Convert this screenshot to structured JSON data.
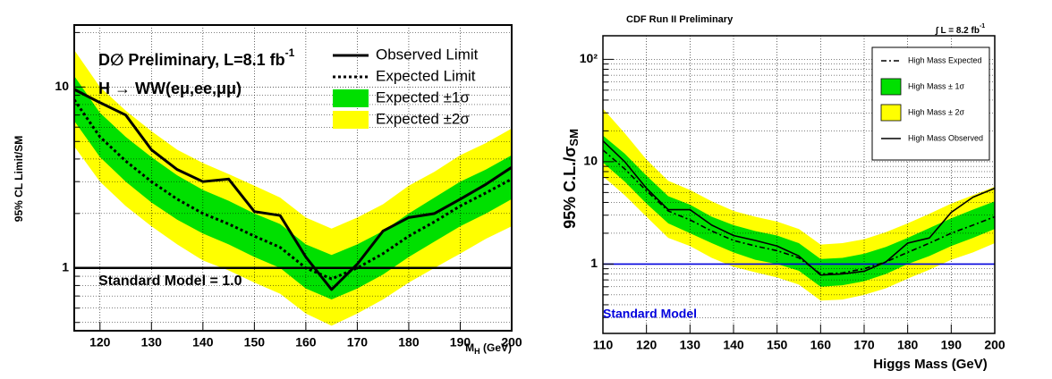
{
  "chart_data": [
    {
      "type": "line",
      "log_y": true,
      "grid": true,
      "title": "D∅ Preliminary, L=8.1 fb",
      "title_sup": "-1",
      "subtitle": "H → WW(eμ,ee,μμ)",
      "y_label": "95% CL Limit/SM",
      "x_label": "M",
      "x_label_sub": "H",
      "x_label_unit": " (GeV)",
      "x": [
        115,
        120,
        125,
        130,
        135,
        140,
        145,
        150,
        155,
        160,
        165,
        170,
        175,
        180,
        185,
        190,
        195,
        200
      ],
      "series": [
        {
          "name": "Observed Limit",
          "color": "#000000",
          "style": "solid",
          "values": [
            9.7,
            8.2,
            7.0,
            4.5,
            3.5,
            3.0,
            3.1,
            2.05,
            1.95,
            1.15,
            0.76,
            1.05,
            1.6,
            1.9,
            2.0,
            2.4,
            2.9,
            3.6
          ]
        },
        {
          "name": "Expected Limit",
          "color": "#000000",
          "style": "dotted",
          "values": [
            8.5,
            5.3,
            3.9,
            3.0,
            2.4,
            2.0,
            1.75,
            1.5,
            1.3,
            1.0,
            0.87,
            1.0,
            1.2,
            1.5,
            1.8,
            2.2,
            2.6,
            3.1
          ]
        },
        {
          "name": "Expected ±1σ",
          "color": "#00e000",
          "style": "band",
          "low": [
            6.5,
            4.1,
            3.0,
            2.3,
            1.85,
            1.55,
            1.35,
            1.15,
            1.0,
            0.77,
            0.67,
            0.77,
            0.92,
            1.15,
            1.4,
            1.7,
            2.0,
            2.4
          ],
          "high": [
            11.5,
            7.2,
            5.3,
            4.1,
            3.25,
            2.7,
            2.35,
            2.0,
            1.75,
            1.35,
            1.18,
            1.35,
            1.6,
            2.0,
            2.45,
            3.0,
            3.5,
            4.2
          ]
        },
        {
          "name": "Expected ±2σ",
          "color": "#ffff00",
          "style": "band",
          "low": [
            4.7,
            3.0,
            2.2,
            1.7,
            1.35,
            1.1,
            0.97,
            0.83,
            0.72,
            0.56,
            0.48,
            0.56,
            0.67,
            0.83,
            1.0,
            1.2,
            1.45,
            1.7
          ],
          "high": [
            16,
            10,
            7.4,
            5.7,
            4.5,
            3.8,
            3.3,
            2.85,
            2.45,
            1.9,
            1.65,
            1.9,
            2.25,
            2.85,
            3.4,
            4.2,
            4.9,
            5.9
          ]
        }
      ],
      "reference_line": {
        "value": 1.0,
        "label": "Standard Model = 1.0",
        "color": "#000000"
      },
      "xlim": [
        115,
        200
      ],
      "ylim": [
        0.45,
        22
      ],
      "xticks": [
        120,
        130,
        140,
        150,
        160,
        170,
        180,
        190,
        200
      ],
      "yticks": [
        1,
        10
      ],
      "yminorticks": [
        0.5,
        0.6,
        0.7,
        0.8,
        0.9,
        2,
        3,
        4,
        5,
        6,
        7,
        8,
        9,
        20
      ]
    },
    {
      "type": "line",
      "log_y": true,
      "grid": true,
      "title": "CDF Run II Preliminary",
      "luminosity": "∫ L = 8.2 fb",
      "luminosity_sup": "-1",
      "y_label": "95% C.L./σ",
      "y_label_sub": "SM",
      "x_label": "Higgs Mass (GeV)",
      "x": [
        110,
        115,
        120,
        125,
        130,
        135,
        140,
        145,
        150,
        155,
        160,
        165,
        170,
        175,
        180,
        185,
        190,
        195,
        200
      ],
      "series": [
        {
          "name": "High Mass Expected",
          "color": "#000000",
          "style": "dashdot",
          "values": [
            13,
            8.5,
            5.2,
            3.3,
            2.7,
            2.1,
            1.7,
            1.5,
            1.35,
            1.15,
            0.8,
            0.82,
            0.9,
            1.05,
            1.3,
            1.6,
            2.0,
            2.4,
            2.9
          ]
        },
        {
          "name": "High Mass ± 1σ",
          "color": "#00e000",
          "style": "band",
          "low": [
            9.8,
            6.4,
            3.9,
            2.5,
            2.0,
            1.6,
            1.3,
            1.1,
            1.0,
            0.86,
            0.6,
            0.62,
            0.68,
            0.8,
            1.0,
            1.2,
            1.5,
            1.8,
            2.2
          ],
          "high": [
            18,
            12,
            7.3,
            4.6,
            3.8,
            2.9,
            2.4,
            2.1,
            1.9,
            1.6,
            1.12,
            1.15,
            1.26,
            1.47,
            1.8,
            2.25,
            2.8,
            3.4,
            4.1
          ]
        },
        {
          "name": "High Mass ± 2σ",
          "color": "#ffff00",
          "style": "band",
          "low": [
            7.2,
            4.7,
            2.9,
            1.8,
            1.5,
            1.15,
            0.94,
            0.83,
            0.74,
            0.63,
            0.44,
            0.45,
            0.5,
            0.58,
            0.72,
            0.88,
            1.1,
            1.3,
            1.6
          ],
          "high": [
            33,
            19,
            10.5,
            6.5,
            5.3,
            4.1,
            3.3,
            2.9,
            2.6,
            2.2,
            1.55,
            1.6,
            1.75,
            2.05,
            2.5,
            3.1,
            3.9,
            4.7,
            5.7
          ]
        },
        {
          "name": "High Mass Observed",
          "color": "#000000",
          "style": "solid",
          "values": [
            16,
            10,
            5.5,
            3.4,
            3.4,
            2.4,
            1.9,
            1.7,
            1.5,
            1.2,
            0.78,
            0.8,
            0.85,
            1.05,
            1.6,
            1.8,
            3.2,
            4.5,
            5.5
          ]
        }
      ],
      "reference_line": {
        "value": 1,
        "label": "Standard Model",
        "color": "#0000dd"
      },
      "xlim": [
        110,
        200
      ],
      "ylim": [
        0.21,
        170
      ],
      "xticks": [
        110,
        120,
        130,
        140,
        150,
        160,
        170,
        180,
        190,
        200
      ],
      "yticks": [
        1,
        10,
        {
          "value": 100,
          "label": "10²"
        }
      ],
      "yminorticks": [
        0.3,
        0.4,
        0.5,
        0.6,
        0.7,
        0.8,
        0.9,
        2,
        3,
        4,
        5,
        6,
        7,
        8,
        9,
        20,
        30,
        40,
        50,
        60,
        70,
        80,
        90
      ]
    }
  ]
}
